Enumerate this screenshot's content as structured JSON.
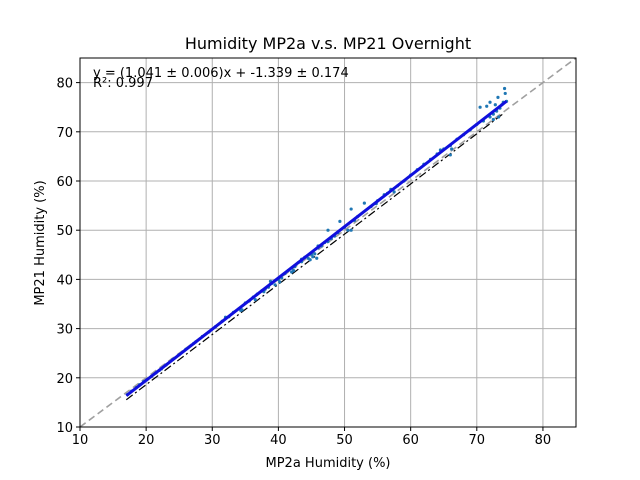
{
  "chart_data": {
    "type": "scatter",
    "title": "Humidity MP2a v.s. MP21 Overnight",
    "xlabel": "MP2a Humidity (%)",
    "ylabel": "MP21 Humidity (%)",
    "xlim": [
      10,
      85
    ],
    "ylim": [
      10,
      85
    ],
    "xticks": [
      10,
      20,
      30,
      40,
      50,
      60,
      70,
      80
    ],
    "yticks": [
      10,
      20,
      30,
      40,
      50,
      60,
      70,
      80
    ],
    "grid": true,
    "annotations": {
      "equation": "y = (1.041 ± 0.006)x + -1.339 ± 0.174",
      "r_squared": "R²: 0.997"
    },
    "fit": {
      "slope": 1.041,
      "intercept": -1.339,
      "x_range": [
        17,
        74.5
      ]
    },
    "reference_lines": [
      {
        "kind": "identity",
        "slope": 1,
        "intercept": 0,
        "style": "dashed",
        "color": "#a0a0a0"
      },
      {
        "kind": "black-dashdot",
        "slope": 1.02,
        "intercept": -1.8,
        "x_range": [
          17,
          74
        ],
        "style": "dashdot",
        "color": "#000000"
      }
    ],
    "scatter_points": [
      [
        17.2,
        16.6
      ],
      [
        17.8,
        17.3
      ],
      [
        18.5,
        18.0
      ],
      [
        19.0,
        18.6
      ],
      [
        19.6,
        19.2
      ],
      [
        20.1,
        19.6
      ],
      [
        20.8,
        20.3
      ],
      [
        21.5,
        21.0
      ],
      [
        22.3,
        21.8
      ],
      [
        23.0,
        22.6
      ],
      [
        24.0,
        23.7
      ],
      [
        25.0,
        24.7
      ],
      [
        26.0,
        25.8
      ],
      [
        27.2,
        27.0
      ],
      [
        28.5,
        28.4
      ],
      [
        29.5,
        29.3
      ],
      [
        30.5,
        30.4
      ],
      [
        31.5,
        31.5
      ],
      [
        32.5,
        32.4
      ],
      [
        33.2,
        33.3
      ],
      [
        34.0,
        34.0
      ],
      [
        34.5,
        33.8
      ],
      [
        35.0,
        35.2
      ],
      [
        35.6,
        35.6
      ],
      [
        36.2,
        36.4
      ],
      [
        36.8,
        37.0
      ],
      [
        37.5,
        37.7
      ],
      [
        38.0,
        38.0
      ],
      [
        38.5,
        38.4
      ],
      [
        39.0,
        39.2
      ],
      [
        39.5,
        38.9
      ],
      [
        40.0,
        40.0
      ],
      [
        40.5,
        40.3
      ],
      [
        41.0,
        41.2
      ],
      [
        41.5,
        41.8
      ],
      [
        42.0,
        42.3
      ],
      [
        42.5,
        42.6
      ],
      [
        43.0,
        43.4
      ],
      [
        43.5,
        43.6
      ],
      [
        44.0,
        44.5
      ],
      [
        44.5,
        44.3
      ],
      [
        45.0,
        45.1
      ],
      [
        45.5,
        45.2
      ],
      [
        46.0,
        46.4
      ],
      [
        46.5,
        46.8
      ],
      [
        47.0,
        47.5
      ],
      [
        47.5,
        47.7
      ],
      [
        48.0,
        48.3
      ],
      [
        48.5,
        48.8
      ],
      [
        49.0,
        49.5
      ],
      [
        49.3,
        51.8
      ],
      [
        50.0,
        50.6
      ],
      [
        50.5,
        50.0
      ],
      [
        51.0,
        54.3
      ],
      [
        51.5,
        52.0
      ],
      [
        52.0,
        52.8
      ],
      [
        53.0,
        55.5
      ],
      [
        54.0,
        54.8
      ],
      [
        55.0,
        56.0
      ],
      [
        56.0,
        57.2
      ],
      [
        57.0,
        58.3
      ],
      [
        58.0,
        59.0
      ],
      [
        59.0,
        60.0
      ],
      [
        60.0,
        61.2
      ],
      [
        61.0,
        62.3
      ],
      [
        62.0,
        63.4
      ],
      [
        63.0,
        64.4
      ],
      [
        64.0,
        65.5
      ],
      [
        65.0,
        66.5
      ],
      [
        66.0,
        67.2
      ],
      [
        67.0,
        68.5
      ],
      [
        68.0,
        69.4
      ],
      [
        69.0,
        70.4
      ],
      [
        70.0,
        71.5
      ],
      [
        70.5,
        75.0
      ],
      [
        71.0,
        72.2
      ],
      [
        71.5,
        75.2
      ],
      [
        72.0,
        73.0
      ],
      [
        72.0,
        76.0
      ],
      [
        72.5,
        73.6
      ],
      [
        72.8,
        75.5
      ],
      [
        73.0,
        74.2
      ],
      [
        73.2,
        77.0
      ],
      [
        73.5,
        74.8
      ],
      [
        73.8,
        75.5
      ],
      [
        74.0,
        76.0
      ],
      [
        74.2,
        78.8
      ],
      [
        74.3,
        77.8
      ],
      [
        74.5,
        76.2
      ],
      [
        72.5,
        72.5
      ],
      [
        73.3,
        73.0
      ],
      [
        70.8,
        72.3
      ],
      [
        66.0,
        65.3
      ],
      [
        43.5,
        44.1
      ],
      [
        44.8,
        44.0
      ],
      [
        45.8,
        44.3
      ],
      [
        36.5,
        35.9
      ],
      [
        37.8,
        37.5
      ],
      [
        42.3,
        41.8
      ],
      [
        34.3,
        33.7
      ],
      [
        66.2,
        66.5
      ],
      [
        64.5,
        66.3
      ],
      [
        54.8,
        55.4
      ],
      [
        56.5,
        57.5
      ],
      [
        57.5,
        57.8
      ],
      [
        47.5,
        50.0
      ],
      [
        46.0,
        46.8
      ],
      [
        42.0,
        41.5
      ],
      [
        40.2,
        39.5
      ],
      [
        45.2,
        44.6
      ],
      [
        51.0,
        50.0
      ],
      [
        22.0,
        21.5
      ],
      [
        27.5,
        27.3
      ],
      [
        32.0,
        32.3
      ],
      [
        38.8,
        39.6
      ]
    ]
  }
}
